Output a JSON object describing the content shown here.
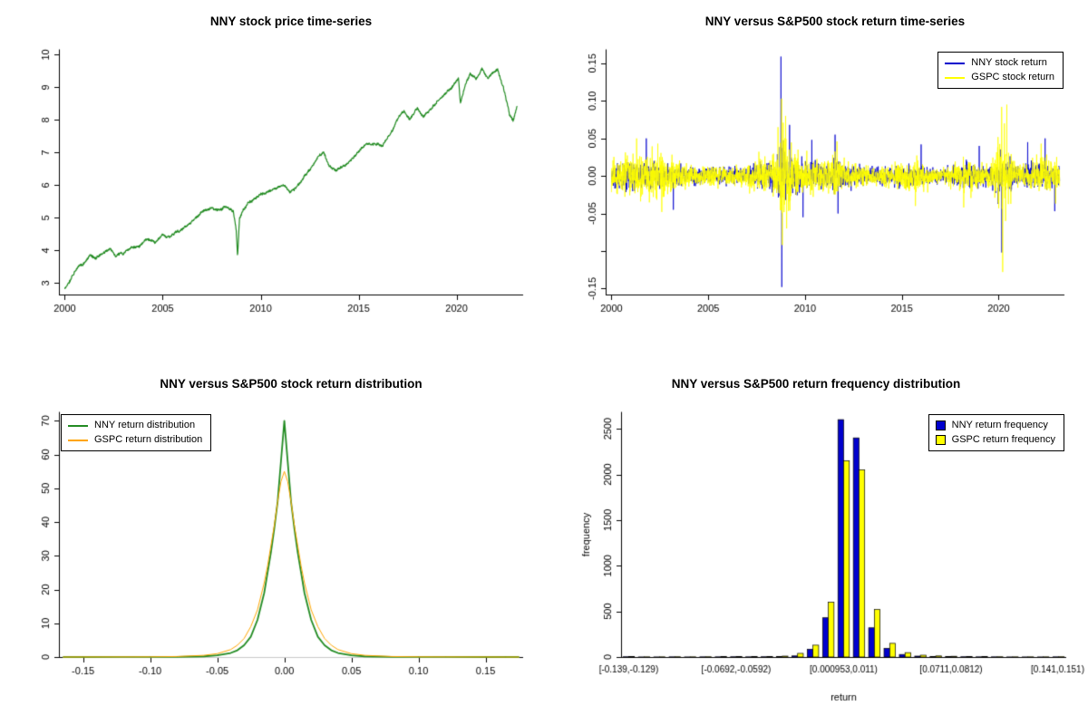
{
  "figure": {
    "background": "#ffffff"
  },
  "chart_data": [
    {
      "id": "price",
      "type": "line",
      "title": "NNY stock price time-series",
      "xlabel": "",
      "ylabel": "",
      "xlim": [
        1999.7,
        2023.4
      ],
      "ylim": [
        2.65,
        10.15
      ],
      "xticks": [
        2000,
        2005,
        2010,
        2015,
        2020
      ],
      "xtick_labels": [
        "2000",
        "2005",
        "2010",
        "2015",
        "2020"
      ],
      "yticks": [
        3,
        4,
        5,
        6,
        7,
        8,
        9,
        10
      ],
      "ytick_labels": [
        "3",
        "4",
        "5",
        "6",
        "7",
        "8",
        "9",
        "10"
      ],
      "grid": false,
      "series": [
        {
          "name": "NNY stock price",
          "color": "#228B22",
          "anchors": [
            [
              2000.0,
              2.82
            ],
            [
              2000.3,
              3.1
            ],
            [
              2000.7,
              3.45
            ],
            [
              2001.0,
              3.6
            ],
            [
              2001.3,
              3.82
            ],
            [
              2001.6,
              3.74
            ],
            [
              2002.0,
              3.95
            ],
            [
              2002.3,
              4.05
            ],
            [
              2002.6,
              3.8
            ],
            [
              2003.0,
              3.9
            ],
            [
              2003.4,
              4.1
            ],
            [
              2003.8,
              4.05
            ],
            [
              2004.2,
              4.3
            ],
            [
              2004.6,
              4.2
            ],
            [
              2005.0,
              4.5
            ],
            [
              2005.4,
              4.45
            ],
            [
              2005.8,
              4.62
            ],
            [
              2006.2,
              4.75
            ],
            [
              2006.6,
              4.9
            ],
            [
              2007.0,
              5.1
            ],
            [
              2007.4,
              5.25
            ],
            [
              2007.8,
              5.2
            ],
            [
              2008.2,
              5.32
            ],
            [
              2008.6,
              5.15
            ],
            [
              2008.75,
              4.6
            ],
            [
              2008.82,
              3.75
            ],
            [
              2008.92,
              4.95
            ],
            [
              2009.1,
              5.25
            ],
            [
              2009.5,
              5.5
            ],
            [
              2010.0,
              5.75
            ],
            [
              2010.4,
              5.9
            ],
            [
              2010.8,
              6.0
            ],
            [
              2011.2,
              6.1
            ],
            [
              2011.5,
              5.85
            ],
            [
              2011.8,
              5.95
            ],
            [
              2012.2,
              6.2
            ],
            [
              2012.6,
              6.5
            ],
            [
              2013.0,
              6.9
            ],
            [
              2013.2,
              7.0
            ],
            [
              2013.5,
              6.6
            ],
            [
              2013.8,
              6.45
            ],
            [
              2014.2,
              6.6
            ],
            [
              2014.6,
              6.85
            ],
            [
              2015.0,
              7.1
            ],
            [
              2015.4,
              7.35
            ],
            [
              2015.8,
              7.3
            ],
            [
              2016.2,
              7.25
            ],
            [
              2016.6,
              7.6
            ],
            [
              2017.0,
              8.05
            ],
            [
              2017.3,
              8.3
            ],
            [
              2017.6,
              8.1
            ],
            [
              2018.0,
              8.45
            ],
            [
              2018.3,
              8.15
            ],
            [
              2018.6,
              8.35
            ],
            [
              2019.0,
              8.6
            ],
            [
              2019.4,
              8.85
            ],
            [
              2019.8,
              9.1
            ],
            [
              2020.1,
              9.3
            ],
            [
              2020.2,
              8.55
            ],
            [
              2020.45,
              9.15
            ],
            [
              2020.7,
              9.5
            ],
            [
              2021.0,
              9.3
            ],
            [
              2021.3,
              9.65
            ],
            [
              2021.6,
              9.35
            ],
            [
              2021.9,
              9.55
            ],
            [
              2022.1,
              9.6
            ],
            [
              2022.4,
              9.0
            ],
            [
              2022.7,
              8.15
            ],
            [
              2022.9,
              7.95
            ],
            [
              2023.1,
              8.45
            ]
          ]
        }
      ]
    },
    {
      "id": "returns",
      "type": "line",
      "title": "NNY versus S&P500 stock return time-series",
      "xlabel": "",
      "ylabel": "",
      "xlim": [
        1999.7,
        2023.4
      ],
      "ylim": [
        -0.158,
        0.168
      ],
      "xticks": [
        2000,
        2005,
        2010,
        2015,
        2020
      ],
      "xtick_labels": [
        "2000",
        "2005",
        "2010",
        "2015",
        "2020"
      ],
      "yticks": [
        -0.15,
        -0.1,
        -0.05,
        0.0,
        0.05,
        0.1,
        0.15
      ],
      "ytick_labels": [
        "-0.15",
        "",
        "-0.05",
        "0.00",
        "0.05",
        "0.10",
        "0.15"
      ],
      "grid": false,
      "legend": {
        "position": "top-right",
        "entries": [
          {
            "label": "NNY stock return"
          },
          {
            "label": "GSPC stock return"
          }
        ]
      },
      "series": [
        {
          "name": "NNY stock return",
          "color": "#0000CD",
          "sigma_anchors": [
            [
              2000,
              0.009
            ],
            [
              2001,
              0.008
            ],
            [
              2002,
              0.0085
            ],
            [
              2003,
              0.007
            ],
            [
              2004,
              0.005
            ],
            [
              2005,
              0.005
            ],
            [
              2006,
              0.005
            ],
            [
              2007,
              0.006
            ],
            [
              2008,
              0.009
            ],
            [
              2008.5,
              0.013
            ],
            [
              2008.85,
              0.022
            ],
            [
              2009.2,
              0.015
            ],
            [
              2009.6,
              0.011
            ],
            [
              2010,
              0.008
            ],
            [
              2010.4,
              0.009
            ],
            [
              2011,
              0.007
            ],
            [
              2011.6,
              0.011
            ],
            [
              2012,
              0.007
            ],
            [
              2013,
              0.006
            ],
            [
              2014,
              0.005
            ],
            [
              2015,
              0.006
            ],
            [
              2015.7,
              0.008
            ],
            [
              2016.2,
              0.006
            ],
            [
              2017,
              0.004
            ],
            [
              2018.1,
              0.008
            ],
            [
              2018.9,
              0.007
            ],
            [
              2019.5,
              0.005
            ],
            [
              2020.15,
              0.013
            ],
            [
              2020.6,
              0.009
            ],
            [
              2021,
              0.006
            ],
            [
              2022,
              0.008
            ],
            [
              2022.8,
              0.008
            ],
            [
              2023.2,
              0.007
            ]
          ],
          "extremes": [
            [
              2008.76,
              0.159
            ],
            [
              2008.8,
              -0.148
            ],
            [
              2001.8,
              0.05
            ],
            [
              2003.2,
              -0.045
            ],
            [
              2009.2,
              0.068
            ],
            [
              2009.9,
              -0.055
            ],
            [
              2010.35,
              0.048
            ],
            [
              2011.55,
              0.055
            ],
            [
              2011.7,
              -0.05
            ],
            [
              2016.0,
              0.042
            ],
            [
              2019.0,
              0.04
            ],
            [
              2020.17,
              -0.102
            ],
            [
              2021.5,
              0.045
            ],
            [
              2022.4,
              0.05
            ],
            [
              2022.9,
              -0.047
            ]
          ]
        },
        {
          "name": "GSPC stock return",
          "color": "#FFFF00",
          "sigma_anchors": [
            [
              2000,
              0.013
            ],
            [
              2001,
              0.012
            ],
            [
              2002,
              0.014
            ],
            [
              2002.7,
              0.015
            ],
            [
              2003,
              0.011
            ],
            [
              2004,
              0.007
            ],
            [
              2005,
              0.006
            ],
            [
              2006,
              0.006
            ],
            [
              2007,
              0.008
            ],
            [
              2008,
              0.012
            ],
            [
              2008.5,
              0.018
            ],
            [
              2008.85,
              0.032
            ],
            [
              2009.2,
              0.022
            ],
            [
              2009.6,
              0.015
            ],
            [
              2010,
              0.01
            ],
            [
              2010.4,
              0.012
            ],
            [
              2011,
              0.009
            ],
            [
              2011.6,
              0.016
            ],
            [
              2012,
              0.009
            ],
            [
              2013,
              0.007
            ],
            [
              2014,
              0.006
            ],
            [
              2015,
              0.007
            ],
            [
              2015.7,
              0.011
            ],
            [
              2016.2,
              0.008
            ],
            [
              2017,
              0.004
            ],
            [
              2018.1,
              0.011
            ],
            [
              2018.9,
              0.009
            ],
            [
              2019.5,
              0.006
            ],
            [
              2020.15,
              0.028
            ],
            [
              2020.6,
              0.014
            ],
            [
              2021,
              0.007
            ],
            [
              2022,
              0.012
            ],
            [
              2022.8,
              0.011
            ],
            [
              2023.2,
              0.009
            ]
          ],
          "extremes": [
            [
              2008.79,
              0.103
            ],
            [
              2008.83,
              -0.092
            ],
            [
              2001.3,
              0.05
            ],
            [
              2002.6,
              -0.048
            ],
            [
              2008.6,
              0.065
            ],
            [
              2009.0,
              0.08
            ],
            [
              2009.05,
              -0.07
            ],
            [
              2011.65,
              0.046
            ],
            [
              2015.7,
              -0.04
            ],
            [
              2018.2,
              -0.042
            ],
            [
              2020.16,
              0.092
            ],
            [
              2020.21,
              -0.128
            ],
            [
              2020.3,
              0.07
            ],
            [
              2020.36,
              -0.06
            ],
            [
              2022.2,
              0.043
            ]
          ]
        }
      ]
    },
    {
      "id": "density",
      "type": "line",
      "title": "NNY versus S&P500 stock return distribution",
      "xlabel": "",
      "ylabel": "",
      "xlim": [
        -0.168,
        0.178
      ],
      "ylim": [
        0,
        72.5
      ],
      "xticks": [
        -0.15,
        -0.1,
        -0.05,
        0.0,
        0.05,
        0.1,
        0.15
      ],
      "xtick_labels": [
        "-0.15",
        "-0.10",
        "-0.05",
        "0.00",
        "0.05",
        "0.10",
        "0.15"
      ],
      "yticks": [
        0,
        10,
        20,
        30,
        40,
        50,
        60,
        70
      ],
      "ytick_labels": [
        "0",
        "10",
        "20",
        "30",
        "40",
        "50",
        "60",
        "70"
      ],
      "grid": false,
      "baseline_color": "#C8C8C8",
      "legend": {
        "position": "top-left",
        "entries": [
          {
            "label": "NNY return distribution"
          },
          {
            "label": "GSPC return distribution"
          }
        ]
      },
      "x": [
        -0.165,
        -0.15,
        -0.12,
        -0.1,
        -0.08,
        -0.06,
        -0.05,
        -0.04,
        -0.035,
        -0.03,
        -0.025,
        -0.02,
        -0.015,
        -0.0125,
        -0.01,
        -0.0075,
        -0.005,
        -0.0025,
        0,
        0.0025,
        0.005,
        0.0075,
        0.01,
        0.0125,
        0.015,
        0.02,
        0.025,
        0.03,
        0.035,
        0.04,
        0.05,
        0.06,
        0.08,
        0.1,
        0.12,
        0.15,
        0.165,
        0.175
      ],
      "series": [
        {
          "name": "NNY return distribution",
          "color": "#228B22",
          "values": [
            0,
            0,
            0.02,
            0.03,
            0.06,
            0.2,
            0.5,
            1.2,
            2,
            3.5,
            6,
            11,
            19,
            25,
            31,
            38,
            46,
            58,
            70,
            58,
            46,
            38,
            31,
            25,
            19,
            11,
            6,
            3.5,
            2,
            1.2,
            0.5,
            0.2,
            0.06,
            0.03,
            0.02,
            0,
            0,
            0
          ]
        },
        {
          "name": "GSPC return distribution",
          "color": "#FFA500",
          "values": [
            0,
            0.02,
            0.04,
            0.06,
            0.15,
            0.5,
            1,
            2.2,
            3.5,
            5.5,
            9,
            14,
            22,
            27,
            33,
            39,
            46,
            52,
            55,
            52,
            46,
            39,
            33,
            27,
            22,
            14,
            9,
            5.5,
            3.5,
            2.2,
            1,
            0.5,
            0.15,
            0.06,
            0.04,
            0.02,
            0,
            0
          ]
        }
      ]
    },
    {
      "id": "histogram",
      "type": "bar",
      "title": "NNY versus S&P500 return frequency distribution",
      "xlabel": "return",
      "ylabel": "frequency",
      "ylim": [
        0,
        2680
      ],
      "yticks": [
        0,
        500,
        1000,
        1500,
        2000,
        2500
      ],
      "ytick_labels": [
        "0",
        "500",
        "1000",
        "1500",
        "2000",
        "2500"
      ],
      "n_bins": 29,
      "xtick_positions": [
        0,
        7,
        14,
        21,
        28
      ],
      "xtick_labels": [
        "[-0.139,-0.129)",
        "[-0.0692,-0.0592)",
        "[0.000953,0.011)",
        "[0.0711,0.0812)",
        "[0.141,0.151)"
      ],
      "grid": false,
      "legend": {
        "position": "top-right",
        "entries": [
          {
            "label": "NNY return frequency"
          },
          {
            "label": "GSPC return frequency"
          }
        ]
      },
      "series": [
        {
          "name": "NNY return frequency",
          "color": "#0000CD",
          "values": [
            3,
            1,
            1,
            2,
            1,
            2,
            2,
            3,
            2,
            3,
            5,
            12,
            85,
            430,
            2600,
            2400,
            320,
            95,
            28,
            10,
            6,
            4,
            3,
            2,
            2,
            1,
            1,
            1,
            2
          ]
        },
        {
          "name": "GSPC return frequency",
          "color": "#FFFF00",
          "values": [
            4,
            2,
            2,
            3,
            2,
            3,
            4,
            5,
            4,
            6,
            10,
            40,
            130,
            600,
            2150,
            2050,
            520,
            150,
            48,
            20,
            12,
            8,
            5,
            4,
            3,
            2,
            2,
            2,
            3
          ]
        }
      ]
    }
  ]
}
